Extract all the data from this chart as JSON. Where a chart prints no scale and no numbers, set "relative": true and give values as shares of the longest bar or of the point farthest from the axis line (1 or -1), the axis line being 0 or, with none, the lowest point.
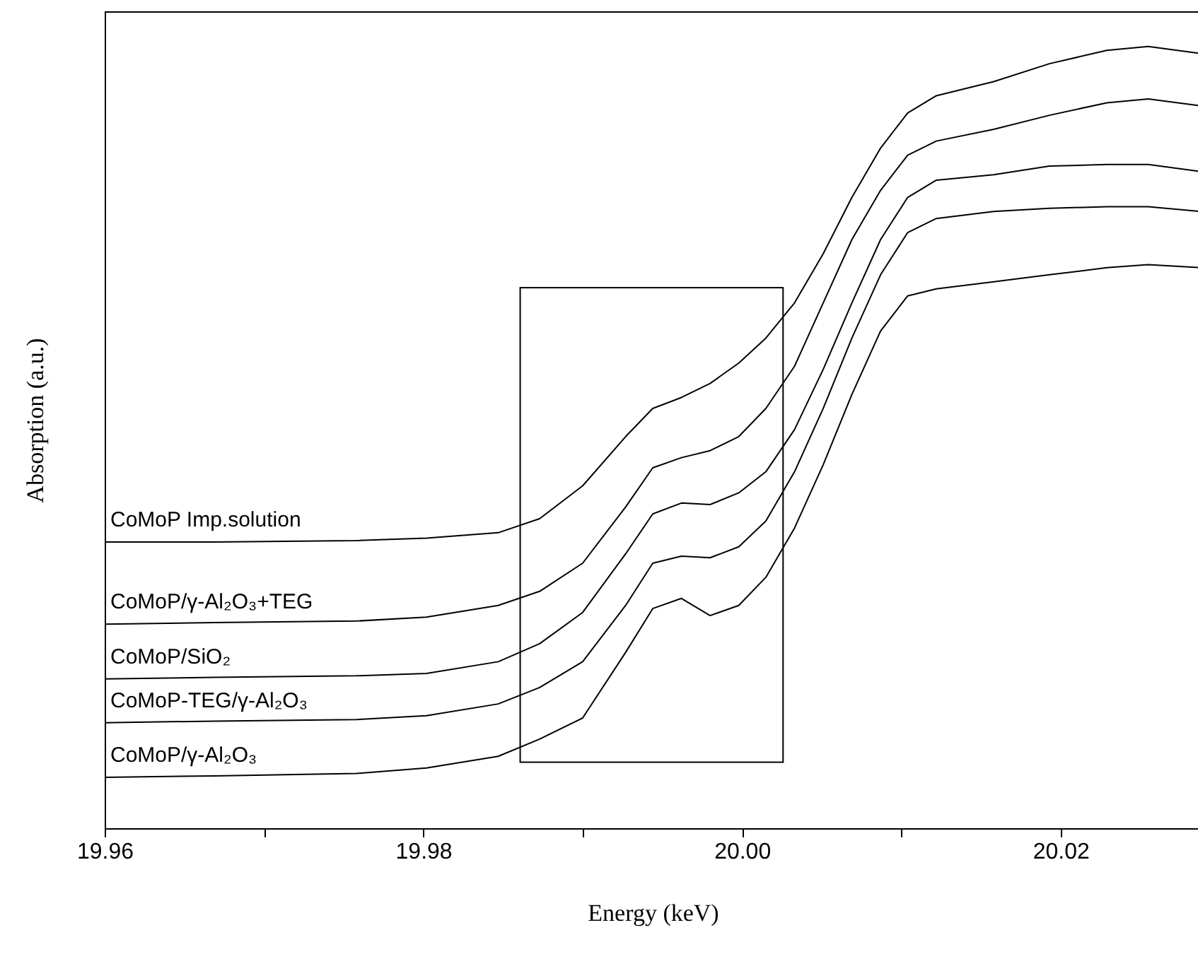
{
  "chart_data": {
    "type": "line",
    "relative": true,
    "xlabel": "Energy (keV)",
    "ylabel": "Absorption (a.u.)",
    "x": [
      19.96,
      19.9669,
      19.9758,
      19.9802,
      19.9847,
      19.9873,
      19.99,
      19.9927,
      19.9944,
      19.9962,
      19.998,
      19.9998,
      20.0015,
      20.0033,
      20.0051,
      20.0069,
      20.0087,
      20.0104,
      20.0122,
      20.0158,
      20.0193,
      20.0229,
      20.0255,
      20.0288
    ],
    "xlim": [
      19.96,
      20.0288
    ],
    "xticks": [
      19.96,
      {
        "value": 19.97,
        "label": null
      },
      19.98,
      {
        "value": 19.99,
        "label": null
      },
      {
        "value": 20,
        "label": "20.00"
      },
      {
        "value": 20.01,
        "label": null
      },
      20.02
    ],
    "series": [
      {
        "name": "CoMoP Imp.solution",
        "color": "#000000",
        "values": [
          0.366,
          0.366,
          0.368,
          0.371,
          0.378,
          0.396,
          0.438,
          0.501,
          0.537,
          0.551,
          0.569,
          0.595,
          0.627,
          0.672,
          0.735,
          0.807,
          0.87,
          0.915,
          0.937,
          0.955,
          0.978,
          0.995,
          1,
          0.991
        ]
      },
      {
        "name": "CoMoP/γ-Al₂O₃+TEG",
        "color": "#000000",
        "values": [
          0.261,
          0.263,
          0.265,
          0.27,
          0.285,
          0.303,
          0.339,
          0.411,
          0.461,
          0.474,
          0.483,
          0.501,
          0.537,
          0.591,
          0.672,
          0.753,
          0.816,
          0.861,
          0.879,
          0.894,
          0.912,
          0.928,
          0.933,
          0.924
        ]
      },
      {
        "name": "CoMoP/SiO₂",
        "color": "#000000",
        "values": [
          0.191,
          0.193,
          0.195,
          0.198,
          0.213,
          0.236,
          0.276,
          0.351,
          0.402,
          0.416,
          0.414,
          0.429,
          0.456,
          0.51,
          0.587,
          0.672,
          0.753,
          0.807,
          0.829,
          0.836,
          0.847,
          0.849,
          0.849,
          0.84
        ]
      },
      {
        "name": "CoMoP-TEG/γ-Al₂O₃",
        "color": "#000000",
        "values": [
          0.135,
          0.137,
          0.139,
          0.144,
          0.159,
          0.18,
          0.213,
          0.285,
          0.339,
          0.348,
          0.346,
          0.36,
          0.393,
          0.456,
          0.537,
          0.627,
          0.708,
          0.762,
          0.78,
          0.789,
          0.793,
          0.795,
          0.795,
          0.789
        ]
      },
      {
        "name": "CoMoP/γ-Al₂O₃",
        "color": "#000000",
        "values": [
          0.065,
          0.067,
          0.07,
          0.077,
          0.092,
          0.114,
          0.141,
          0.225,
          0.281,
          0.294,
          0.272,
          0.285,
          0.321,
          0.384,
          0.465,
          0.555,
          0.636,
          0.681,
          0.69,
          0.699,
          0.708,
          0.717,
          0.721,
          0.717
        ]
      }
    ]
  }
}
